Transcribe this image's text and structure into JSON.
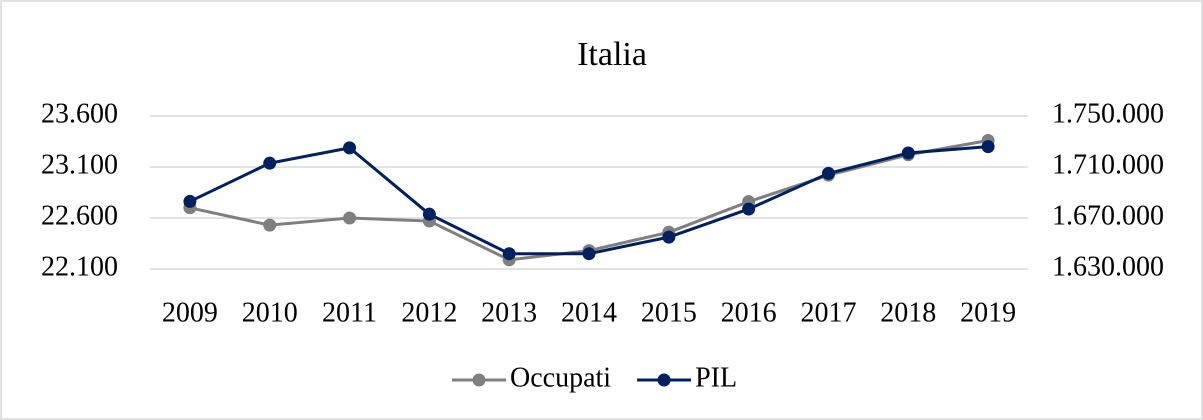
{
  "chart_data": {
    "type": "line",
    "title": "Italia",
    "categories": [
      "2009",
      "2010",
      "2011",
      "2012",
      "2013",
      "2014",
      "2015",
      "2016",
      "2017",
      "2018",
      "2019"
    ],
    "series": [
      {
        "name": "Occupati",
        "color": "#7f7f7f",
        "values": [
          22700,
          22530,
          22600,
          22570,
          22190,
          22280,
          22460,
          22760,
          23020,
          23220,
          23360
        ]
      },
      {
        "name": "PIL",
        "color": "#002060",
        "axis": "y2",
        "values": [
          1683000,
          1713000,
          1725000,
          1673000,
          1642000,
          1642000,
          1655000,
          1677000,
          1705000,
          1721000,
          1726000
        ]
      }
    ],
    "ylim": [
      22100,
      23600
    ],
    "yticks": [
      {
        "value": 22100,
        "label": "22.100"
      },
      {
        "value": 22600,
        "label": "22.600"
      },
      {
        "value": 23100,
        "label": "23.100"
      },
      {
        "value": 23600,
        "label": "23.600"
      }
    ],
    "y2lim": [
      1630000,
      1750000
    ],
    "y2ticks": [
      {
        "value": 1630000,
        "label": "1.630.000"
      },
      {
        "value": 1670000,
        "label": "1.670.000"
      },
      {
        "value": 1710000,
        "label": "1.710.000"
      },
      {
        "value": 1750000,
        "label": "1.750.000"
      }
    ],
    "grid": true,
    "legend": "bottom"
  }
}
